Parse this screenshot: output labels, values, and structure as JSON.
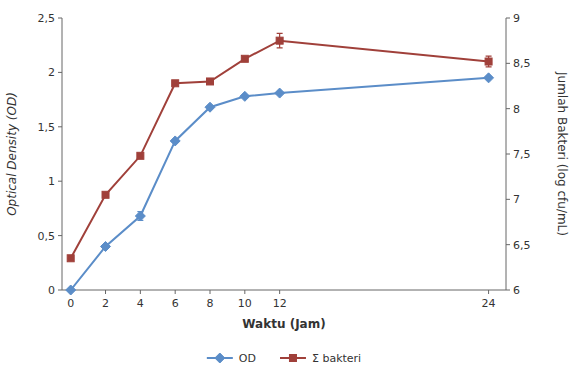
{
  "chart_data": {
    "type": "line",
    "xlabel": "Waktu (Jam)",
    "ylabel": "Optical Density (OD)",
    "y2label": "Jumlah Bakteri (log cfu/mL)",
    "x": [
      0,
      2,
      4,
      6,
      8,
      10,
      12,
      24
    ],
    "xlim": [
      -0.5,
      25
    ],
    "xticks": [
      0,
      2,
      4,
      6,
      8,
      10,
      12,
      24
    ],
    "ylim": [
      0,
      2.5
    ],
    "yticks": [
      0,
      {
        "value": 0.5,
        "label": "0,5"
      },
      1,
      {
        "value": 1.5,
        "label": "1,5"
      },
      2,
      {
        "value": 2.5,
        "label": "2,5"
      }
    ],
    "y2lim": [
      6,
      9
    ],
    "y2ticks": [
      6,
      {
        "value": 6.5,
        "label": "6,5"
      },
      7,
      {
        "value": 7.5,
        "label": "7,5"
      },
      8,
      {
        "value": 8.5,
        "label": "8,5"
      },
      9
    ],
    "legend": "bottom",
    "series": [
      {
        "name": "OD",
        "color": "#5b8dc8",
        "marker": "diamond",
        "values": [
          0.0,
          0.4,
          0.68,
          1.37,
          1.68,
          1.78,
          1.81,
          1.95
        ],
        "errors": [
          0.0,
          0.0,
          0.04,
          0.0,
          0.0,
          0.0,
          0.0,
          0.0
        ]
      },
      {
        "name": "Σ bakteri",
        "color": "#a0403a",
        "marker": "square",
        "axis": "y2",
        "values": [
          6.35,
          7.05,
          7.48,
          8.28,
          8.3,
          8.55,
          8.75,
          8.52
        ],
        "errors": [
          0.0,
          0.0,
          0.0,
          0.0,
          0.0,
          0.0,
          0.08,
          0.06
        ]
      }
    ]
  }
}
